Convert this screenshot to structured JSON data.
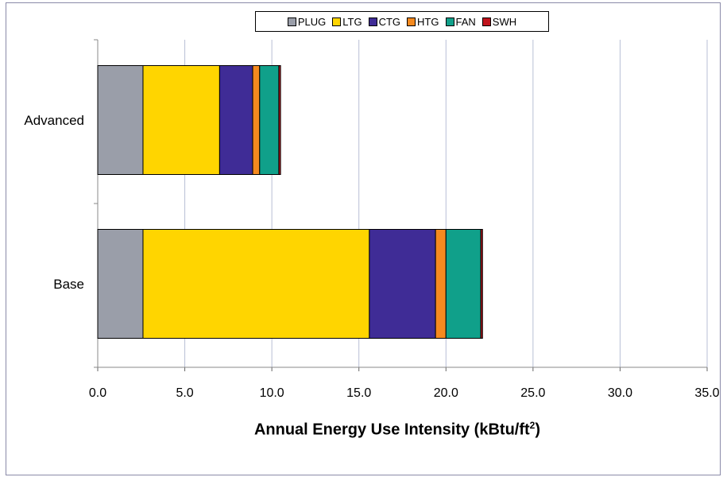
{
  "chart_data": {
    "type": "bar",
    "orientation": "horizontal",
    "stacked": true,
    "categories": [
      "Advanced",
      "Base"
    ],
    "series": [
      {
        "name": "PLUG",
        "color": "#9a9ea9",
        "values": [
          2.6,
          2.6
        ]
      },
      {
        "name": "LTG",
        "color": "#ffd500",
        "values": [
          4.4,
          13.0
        ]
      },
      {
        "name": "CTG",
        "color": "#3f2c96",
        "values": [
          1.9,
          3.8
        ]
      },
      {
        "name": "HTG",
        "color": "#f58a1f",
        "values": [
          0.4,
          0.6
        ]
      },
      {
        "name": "FAN",
        "color": "#10a08a",
        "values": [
          1.1,
          2.0
        ]
      },
      {
        "name": "SWH",
        "color": "#c0141c",
        "values": [
          0.1,
          0.1
        ]
      }
    ],
    "xlabel_main": "Annual Energy Use Intensity (kBtu/ft",
    "xlabel_sup": "2",
    "xlabel_close": ")",
    "xlim": [
      0,
      35
    ],
    "xticks": [
      "0.0",
      "5.0",
      "10.0",
      "15.0",
      "20.0",
      "25.0",
      "30.0",
      "35.0"
    ],
    "grid": "vertical",
    "legend_position": "top"
  }
}
